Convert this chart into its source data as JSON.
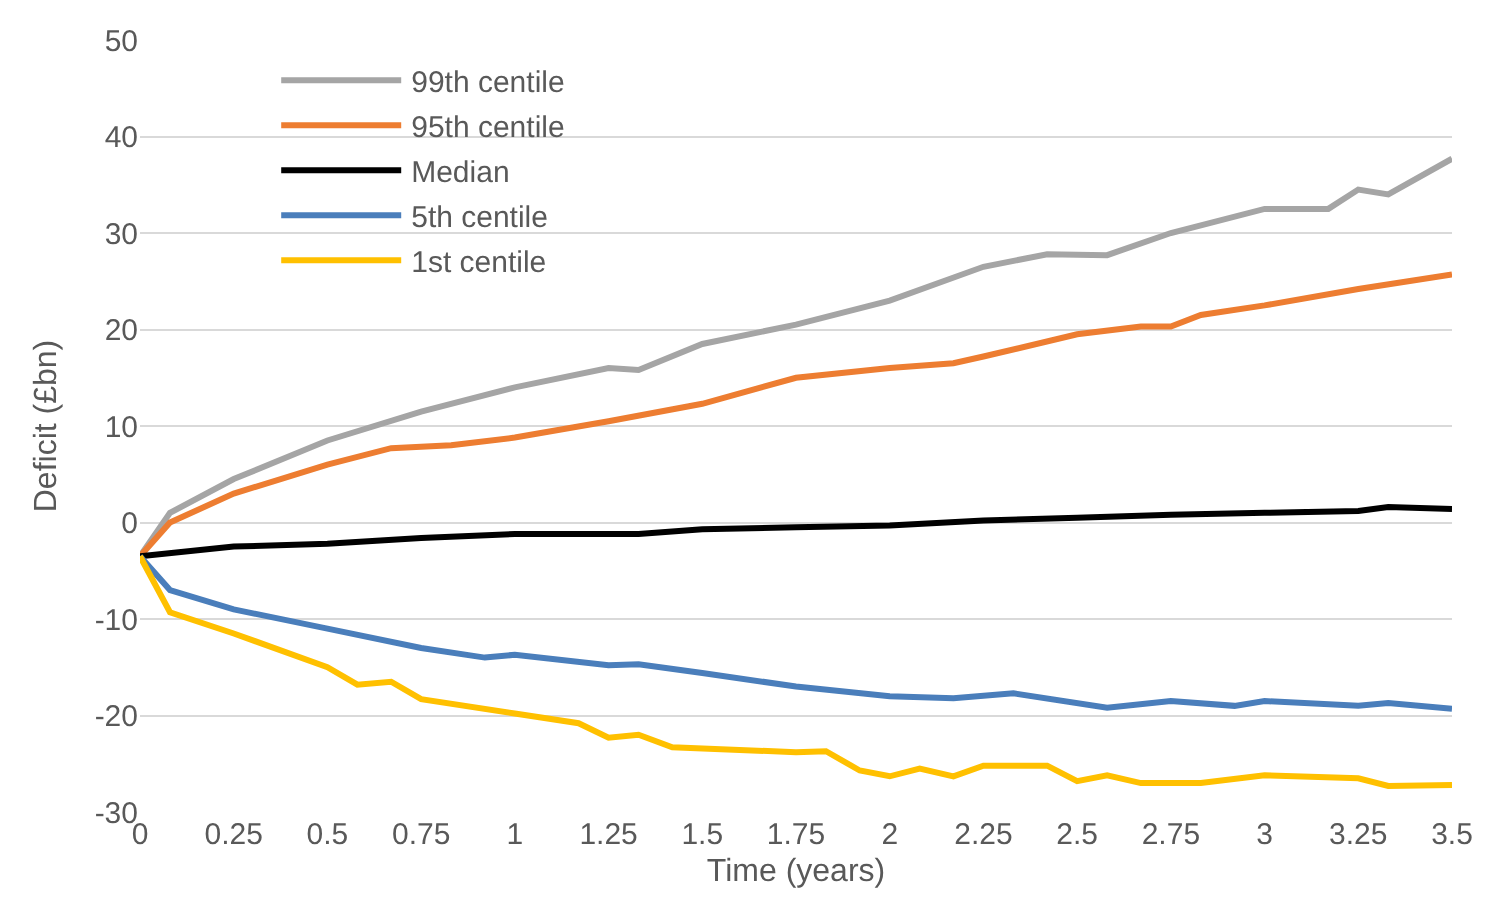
{
  "chart_data": {
    "type": "line",
    "xlabel": "Time (years)",
    "ylabel": "Deficit (£bn)",
    "xlim": [
      0,
      3.5
    ],
    "xticks": [
      0,
      0.25,
      0.5,
      0.75,
      1,
      1.25,
      1.5,
      1.75,
      2,
      2.25,
      2.5,
      2.75,
      3,
      3.25,
      3.5
    ],
    "ylim": [
      -30,
      50
    ],
    "yticks": [
      -30,
      -20,
      -10,
      0,
      10,
      20,
      30,
      40,
      50
    ],
    "grid": "y",
    "legend": "top left",
    "marker": "none",
    "line_style": "solid",
    "series": [
      {
        "name": "99th centile",
        "color": "#a5a5a5",
        "x": [
          0,
          0.08,
          0.25,
          0.5,
          0.75,
          1,
          1.25,
          1.33,
          1.5,
          1.75,
          2,
          2.25,
          2.42,
          2.58,
          2.75,
          3,
          3.17,
          3.25,
          3.33,
          3.5
        ],
        "values": [
          -3.5,
          1,
          4.5,
          8.5,
          11.5,
          14,
          16,
          15.8,
          18.5,
          20.5,
          23,
          26.5,
          27.8,
          27.7,
          30,
          32.5,
          32.5,
          34.5,
          34,
          37.7
        ]
      },
      {
        "name": "95th centile",
        "color": "#ed7d31",
        "x": [
          0,
          0.08,
          0.25,
          0.5,
          0.67,
          0.83,
          1,
          1.25,
          1.5,
          1.75,
          2,
          2.17,
          2.25,
          2.5,
          2.67,
          2.75,
          2.83,
          3,
          3.25,
          3.5
        ],
        "values": [
          -3.5,
          0,
          3,
          6,
          7.7,
          8,
          8.8,
          10.5,
          12.3,
          15,
          16,
          16.5,
          17.2,
          19.5,
          20.3,
          20.3,
          21.5,
          22.5,
          24.2,
          25.7
        ]
      },
      {
        "name": "Median",
        "color": "#000000",
        "x": [
          0,
          0.25,
          0.5,
          0.75,
          1,
          1.33,
          1.5,
          1.75,
          2,
          2.25,
          2.5,
          2.75,
          3,
          3.25,
          3.33,
          3.5
        ],
        "values": [
          -3.5,
          -2.5,
          -2.2,
          -1.6,
          -1.2,
          -1.2,
          -0.7,
          -0.5,
          -0.3,
          0.2,
          0.5,
          0.8,
          1,
          1.2,
          1.6,
          1.4
        ]
      },
      {
        "name": "5th centile",
        "color": "#4a7ebb",
        "x": [
          0,
          0.08,
          0.25,
          0.5,
          0.75,
          0.92,
          1,
          1.25,
          1.33,
          1.5,
          1.75,
          2,
          2.17,
          2.33,
          2.58,
          2.75,
          2.92,
          3,
          3.25,
          3.33,
          3.5
        ],
        "values": [
          -3.5,
          -7,
          -9,
          -11,
          -13,
          -14,
          -13.7,
          -14.8,
          -14.7,
          -15.6,
          -17,
          -18,
          -18.2,
          -17.7,
          -19.2,
          -18.5,
          -19,
          -18.5,
          -19,
          -18.7,
          -19.3
        ]
      },
      {
        "name": "1st centile",
        "color": "#ffc000",
        "x": [
          0,
          0.08,
          0.25,
          0.5,
          0.58,
          0.67,
          0.75,
          1,
          1.17,
          1.25,
          1.33,
          1.42,
          1.75,
          1.83,
          1.92,
          2,
          2.08,
          2.17,
          2.25,
          2.42,
          2.5,
          2.58,
          2.67,
          2.83,
          3,
          3.25,
          3.33,
          3.5
        ],
        "values": [
          -3.5,
          -9.3,
          -11.5,
          -15,
          -16.8,
          -16.5,
          -18.3,
          -19.8,
          -20.8,
          -22.3,
          -22,
          -23.3,
          -23.8,
          -23.7,
          -25.7,
          -26.3,
          -25.5,
          -26.3,
          -25.2,
          -25.2,
          -26.8,
          -26.2,
          -27,
          -27,
          -26.2,
          -26.5,
          -27.3,
          -27.2
        ]
      }
    ]
  }
}
